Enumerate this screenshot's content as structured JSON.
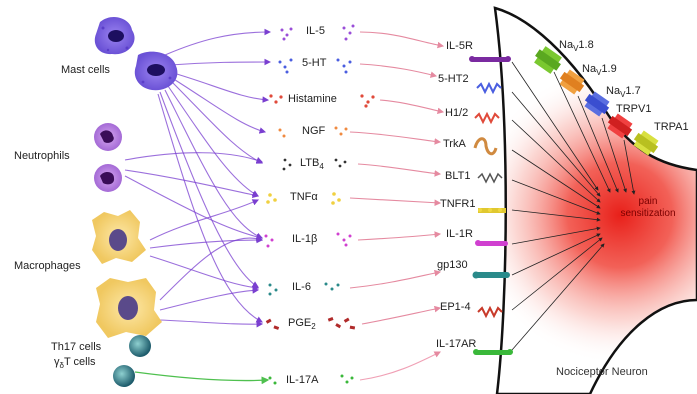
{
  "cells": {
    "mast": "Mast cells",
    "neutrophils": "Neutrophils",
    "macrophages": "Macrophages",
    "th17_line1": "Th17 cells",
    "th17_line2_pre": "γ",
    "th17_line2_mid": "δ",
    "th17_line2_post": "T cells"
  },
  "mediators": {
    "il5": "IL-5",
    "ht5": "5-HT",
    "histamine": "Histamine",
    "ngf": "NGF",
    "ltb4": "LTB",
    "ltb4_sub": "4",
    "tnfa": "TNFα",
    "il1b": "IL-1β",
    "il6": "IL-6",
    "pge2": "PGE",
    "pge2_sub": "2",
    "il17a": "IL-17A"
  },
  "receptors": {
    "il5r": "IL-5R",
    "ht2": "5-HT2",
    "h12": "H1/2",
    "trka": "TrkA",
    "blt1": "BLT1",
    "tnfr1": "TNFR1",
    "il1r": "IL-1R",
    "gp130": "gp130",
    "ep14": "EP1-4",
    "il17ar": "IL-17AR"
  },
  "channels": {
    "nav18_pre": "Na",
    "nav18_sub": "V",
    "nav18_post": "1.8",
    "nav19_pre": "Na",
    "nav19_sub": "V",
    "nav19_post": "1.9",
    "nav17_pre": "Na",
    "nav17_sub": "V",
    "nav17_post": "1.7",
    "trpv1": "TRPV1",
    "trpa1": "TRPA1"
  },
  "pain": {
    "line1": "pain",
    "line2": "sensitization"
  },
  "neuron_label": "Nociceptor Neuron",
  "colors": {
    "purple": "#7a3fd0",
    "pink_arrow": "#e58aa0",
    "green": "#4fc04f",
    "red": "#e23a2a"
  }
}
